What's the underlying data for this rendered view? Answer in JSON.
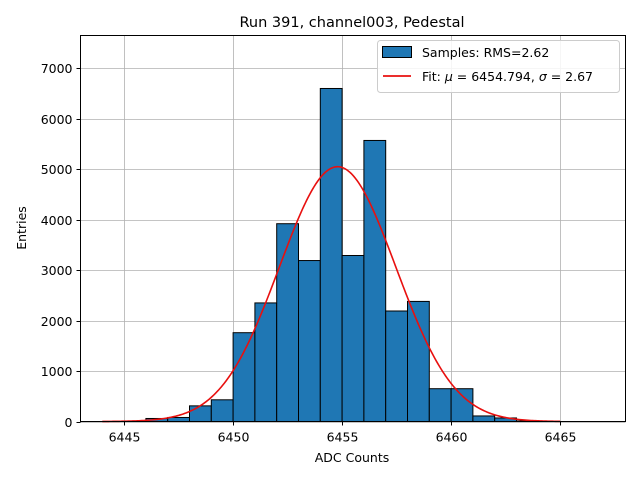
{
  "chart_data": {
    "type": "bar",
    "title": "Run 391, channel003, Pedestal",
    "xlabel": "ADC Counts",
    "ylabel": "Entries",
    "xlim": [
      6443,
      6468
    ],
    "ylim": [
      0,
      7650
    ],
    "xticks": [
      6445,
      6450,
      6455,
      6460,
      6465
    ],
    "yticks": [
      0,
      1000,
      2000,
      3000,
      4000,
      5000,
      6000,
      7000
    ],
    "grid": true,
    "legend_position": "top-right",
    "bar_color": "#1f77b4",
    "fit_color": "#e8100f",
    "histogram": {
      "name": "Samples: RMS=2.62",
      "bin_width": 1,
      "bins": [
        {
          "left": 6446,
          "count": 60
        },
        {
          "left": 6447,
          "count": 80
        },
        {
          "left": 6448,
          "count": 310
        },
        {
          "left": 6449,
          "count": 430
        },
        {
          "left": 6450,
          "count": 1760
        },
        {
          "left": 6451,
          "count": 2350
        },
        {
          "left": 6452,
          "count": 3920
        },
        {
          "left": 6453,
          "count": 3190
        },
        {
          "left": 6454,
          "count": 6600
        },
        {
          "left": 6455,
          "count": 3290
        },
        {
          "left": 6456,
          "count": 5570
        },
        {
          "left": 6457,
          "count": 2190
        },
        {
          "left": 6458,
          "count": 2380
        },
        {
          "left": 6459,
          "count": 650
        },
        {
          "left": 6460,
          "count": 650
        },
        {
          "left": 6461,
          "count": 110
        },
        {
          "left": 6462,
          "count": 70
        },
        {
          "left": 6463,
          "count": 10
        }
      ]
    },
    "fit": {
      "name_prefix": "Fit: ",
      "mu_symbol": "μ",
      "mu_text": " = 6454.794, ",
      "sigma_symbol": "σ",
      "sigma_text": " = 2.67",
      "mu": 6454.794,
      "sigma": 2.67,
      "amplitude": 5050,
      "x_range": [
        6444,
        6465
      ]
    }
  }
}
